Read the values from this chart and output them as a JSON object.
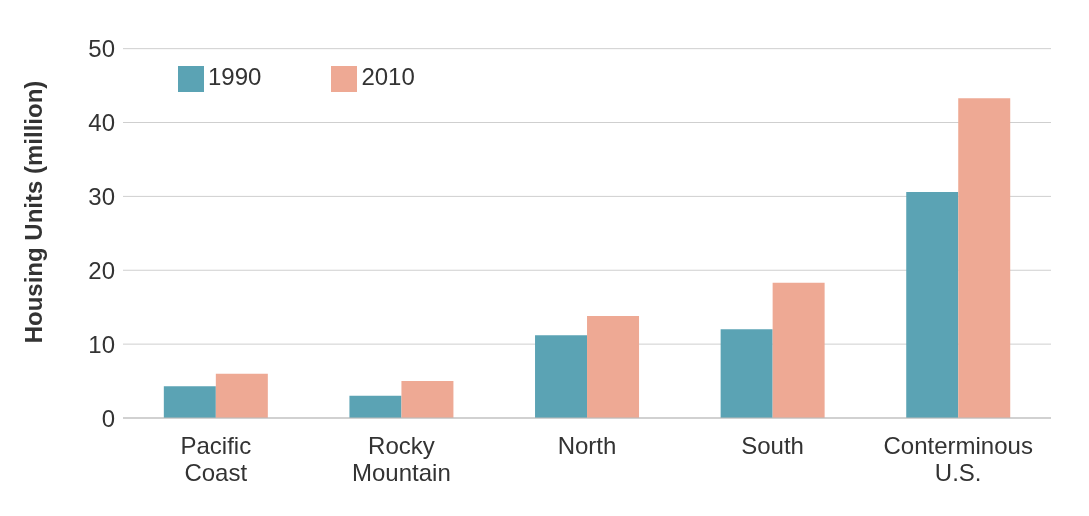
{
  "chart_data": {
    "type": "bar",
    "ylabel": "Housing Units (million)",
    "categories": [
      "Pacific Coast",
      "Rocky Mountain",
      "North",
      "South",
      "Conterminous U.S."
    ],
    "series": [
      {
        "name": "1990",
        "color": "#5ba3b4",
        "values": [
          4.3,
          3.0,
          11.2,
          12.0,
          30.6
        ]
      },
      {
        "name": "2010",
        "color": "#eea994",
        "values": [
          6.0,
          5.0,
          13.8,
          18.3,
          43.3
        ]
      }
    ],
    "ylim": [
      0,
      50
    ],
    "yticks": [
      0,
      10,
      20,
      30,
      40,
      50
    ],
    "grid": "y",
    "legend": "top left"
  }
}
